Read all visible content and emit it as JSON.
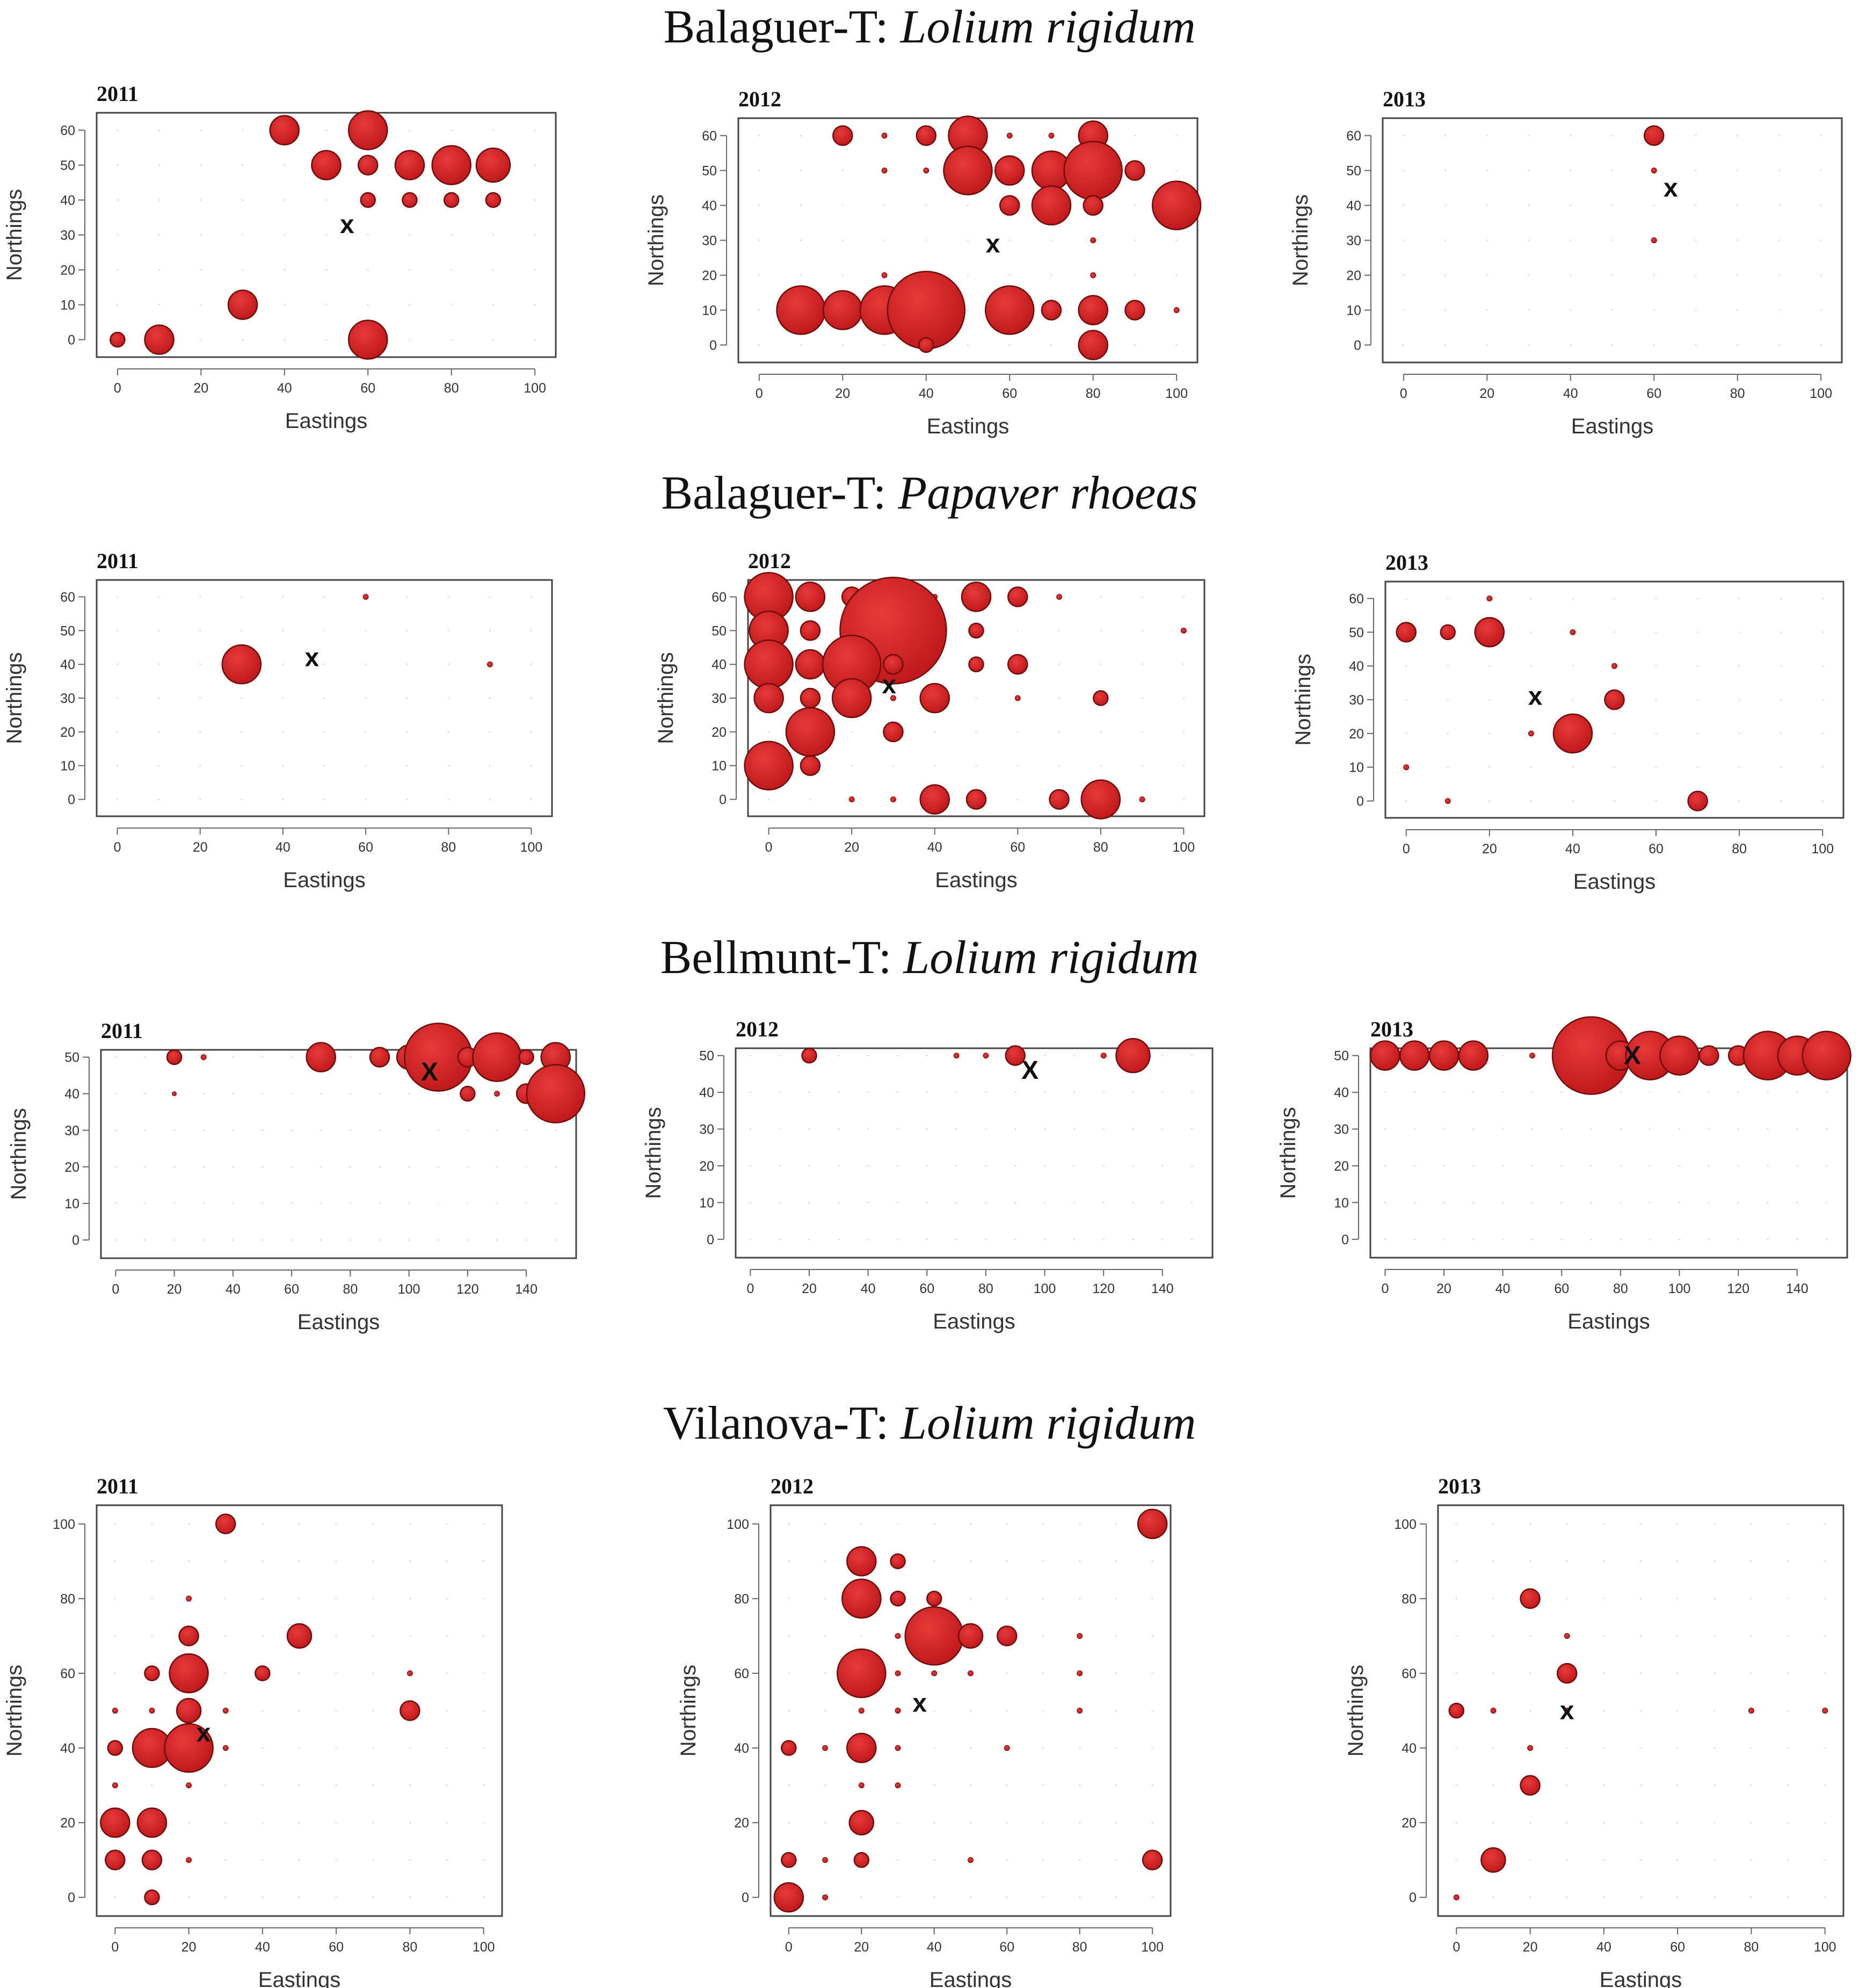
{
  "colors": {
    "bubble": "#c0191c",
    "bubble_edge": "#6e0b0b",
    "frame": "#444444"
  },
  "sections": [
    {
      "site": "Balaguer-T:",
      "species": "Lolium rigidum"
    },
    {
      "site": "Balaguer-T:",
      "species": "Papaver rhoeas"
    },
    {
      "site": "Bellmunt-T:",
      "species": "Lolium rigidum"
    },
    {
      "site": "Vilanova-T:",
      "species": "Lolium rigidum"
    }
  ],
  "chart_data": [
    {
      "type": "scatter",
      "section": 0,
      "title": "2011",
      "xlabel": "Eastings",
      "ylabel": "Northings",
      "xlim": [
        -5,
        105
      ],
      "ylim": [
        -5,
        65
      ],
      "xticks": [
        0,
        20,
        40,
        60,
        80,
        100
      ],
      "yticks": [
        0,
        10,
        20,
        30,
        40,
        50,
        60
      ],
      "marker": {
        "x": 55,
        "y": 33,
        "label": "x"
      },
      "points": [
        [
          40,
          60,
          3
        ],
        [
          60,
          60,
          4
        ],
        [
          50,
          50,
          3
        ],
        [
          60,
          50,
          2
        ],
        [
          70,
          50,
          3
        ],
        [
          80,
          50,
          4
        ],
        [
          90,
          50,
          3.5
        ],
        [
          60,
          40,
          1.5
        ],
        [
          70,
          40,
          1.5
        ],
        [
          80,
          40,
          1.5
        ],
        [
          90,
          40,
          1.5
        ],
        [
          30,
          10,
          3
        ],
        [
          0,
          0,
          1.5
        ],
        [
          10,
          0,
          3
        ],
        [
          60,
          0,
          4
        ]
      ]
    },
    {
      "type": "scatter",
      "section": 0,
      "title": "2012",
      "xlabel": "Eastings",
      "ylabel": "Northings",
      "xlim": [
        -5,
        105
      ],
      "ylim": [
        -5,
        65
      ],
      "xticks": [
        0,
        20,
        40,
        60,
        80,
        100
      ],
      "yticks": [
        0,
        10,
        20,
        30,
        40,
        50,
        60
      ],
      "marker": {
        "x": 56,
        "y": 29,
        "label": "x"
      },
      "points": [
        [
          20,
          60,
          2
        ],
        [
          30,
          60,
          1
        ],
        [
          40,
          60,
          2
        ],
        [
          50,
          60,
          4
        ],
        [
          60,
          60,
          1
        ],
        [
          70,
          60,
          1
        ],
        [
          80,
          60,
          3
        ],
        [
          30,
          50,
          1
        ],
        [
          40,
          50,
          1
        ],
        [
          50,
          50,
          5
        ],
        [
          60,
          50,
          3
        ],
        [
          70,
          50,
          4
        ],
        [
          80,
          50,
          6
        ],
        [
          90,
          50,
          2
        ],
        [
          60,
          40,
          2
        ],
        [
          70,
          40,
          4
        ],
        [
          80,
          40,
          2
        ],
        [
          100,
          40,
          5
        ],
        [
          80,
          30,
          1
        ],
        [
          30,
          20,
          1
        ],
        [
          80,
          20,
          1
        ],
        [
          10,
          10,
          5
        ],
        [
          20,
          10,
          4
        ],
        [
          30,
          10,
          5
        ],
        [
          40,
          10,
          8
        ],
        [
          60,
          10,
          5
        ],
        [
          70,
          10,
          2
        ],
        [
          80,
          10,
          3
        ],
        [
          90,
          10,
          2
        ],
        [
          100,
          10,
          1
        ],
        [
          40,
          0,
          1.5
        ],
        [
          80,
          0,
          3
        ]
      ]
    },
    {
      "type": "scatter",
      "section": 0,
      "title": "2013",
      "xlabel": "Eastings",
      "ylabel": "Northings",
      "xlim": [
        -5,
        105
      ],
      "ylim": [
        -5,
        65
      ],
      "xticks": [
        0,
        20,
        40,
        60,
        80,
        100
      ],
      "yticks": [
        0,
        10,
        20,
        30,
        40,
        50,
        60
      ],
      "marker": {
        "x": 64,
        "y": 45,
        "label": "x"
      },
      "points": [
        [
          60,
          60,
          2
        ],
        [
          60,
          50,
          1
        ],
        [
          60,
          30,
          1
        ]
      ]
    },
    {
      "type": "scatter",
      "section": 1,
      "title": "2011",
      "xlabel": "Eastings",
      "ylabel": "Northings",
      "xlim": [
        -5,
        105
      ],
      "ylim": [
        -5,
        65
      ],
      "xticks": [
        0,
        20,
        40,
        60,
        80,
        100
      ],
      "yticks": [
        0,
        10,
        20,
        30,
        40,
        50,
        60
      ],
      "marker": {
        "x": 47,
        "y": 42,
        "label": "x"
      },
      "points": [
        [
          30,
          40,
          4
        ],
        [
          60,
          60,
          1
        ],
        [
          90,
          40,
          1
        ]
      ]
    },
    {
      "type": "scatter",
      "section": 1,
      "title": "2012",
      "xlabel": "Eastings",
      "ylabel": "Northings",
      "xlim": [
        -5,
        105
      ],
      "ylim": [
        -5,
        65
      ],
      "xticks": [
        0,
        20,
        40,
        60,
        80,
        100
      ],
      "yticks": [
        0,
        10,
        20,
        30,
        40,
        50,
        60
      ],
      "marker": {
        "x": 29,
        "y": 34,
        "label": "x"
      },
      "points": [
        [
          0,
          60,
          5
        ],
        [
          10,
          60,
          3
        ],
        [
          20,
          60,
          2
        ],
        [
          30,
          60,
          2
        ],
        [
          40,
          60,
          1
        ],
        [
          50,
          60,
          3
        ],
        [
          60,
          60,
          2
        ],
        [
          70,
          60,
          1
        ],
        [
          0,
          50,
          4
        ],
        [
          10,
          50,
          2
        ],
        [
          20,
          50,
          2
        ],
        [
          30,
          50,
          11
        ],
        [
          50,
          50,
          1.5
        ],
        [
          100,
          50,
          1
        ],
        [
          0,
          40,
          5
        ],
        [
          10,
          40,
          3
        ],
        [
          20,
          40,
          6
        ],
        [
          30,
          40,
          2
        ],
        [
          50,
          40,
          1.5
        ],
        [
          60,
          40,
          2
        ],
        [
          0,
          30,
          3
        ],
        [
          10,
          30,
          2
        ],
        [
          20,
          30,
          4
        ],
        [
          30,
          30,
          1
        ],
        [
          40,
          30,
          3
        ],
        [
          60,
          30,
          1
        ],
        [
          80,
          30,
          1.5
        ],
        [
          10,
          20,
          5
        ],
        [
          30,
          20,
          2
        ],
        [
          0,
          10,
          5
        ],
        [
          10,
          10,
          2
        ],
        [
          20,
          0,
          1
        ],
        [
          30,
          0,
          1
        ],
        [
          40,
          0,
          3
        ],
        [
          50,
          0,
          2
        ],
        [
          70,
          0,
          2
        ],
        [
          80,
          0,
          4
        ],
        [
          90,
          0,
          1
        ]
      ]
    },
    {
      "type": "scatter",
      "section": 1,
      "title": "2013",
      "xlabel": "Eastings",
      "ylabel": "Northings",
      "xlim": [
        -5,
        105
      ],
      "ylim": [
        -5,
        65
      ],
      "xticks": [
        0,
        20,
        40,
        60,
        80,
        100
      ],
      "yticks": [
        0,
        10,
        20,
        30,
        40,
        50,
        60
      ],
      "marker": {
        "x": 31,
        "y": 31,
        "label": "x"
      },
      "points": [
        [
          0,
          50,
          2
        ],
        [
          10,
          50,
          1.5
        ],
        [
          20,
          50,
          3
        ],
        [
          20,
          60,
          1
        ],
        [
          40,
          50,
          1
        ],
        [
          50,
          40,
          1
        ],
        [
          50,
          30,
          2
        ],
        [
          30,
          20,
          1
        ],
        [
          40,
          20,
          4
        ],
        [
          0,
          10,
          1
        ],
        [
          10,
          0,
          1
        ],
        [
          70,
          0,
          2
        ]
      ]
    },
    {
      "type": "scatter",
      "section": 2,
      "title": "2011",
      "xlabel": "Eastings",
      "ylabel": "Northings",
      "xlim": [
        -5,
        157
      ],
      "ylim": [
        -5,
        52
      ],
      "xticks": [
        0,
        20,
        40,
        60,
        80,
        100,
        120,
        140
      ],
      "yticks": [
        0,
        10,
        20,
        30,
        40,
        50
      ],
      "marker": {
        "x": 107,
        "y": 46,
        "label": "X"
      },
      "points": [
        [
          20,
          50,
          1.5
        ],
        [
          30,
          50,
          1
        ],
        [
          70,
          50,
          3
        ],
        [
          90,
          50,
          2
        ],
        [
          100,
          50,
          2.5
        ],
        [
          110,
          50,
          7
        ],
        [
          120,
          50,
          2
        ],
        [
          130,
          50,
          5
        ],
        [
          140,
          50,
          1.5
        ],
        [
          150,
          50,
          3
        ],
        [
          120,
          40,
          1.5
        ],
        [
          130,
          40,
          1
        ],
        [
          140,
          40,
          2
        ],
        [
          150,
          40,
          6
        ],
        [
          20,
          40,
          0.8
        ]
      ]
    },
    {
      "type": "scatter",
      "section": 2,
      "title": "2012",
      "xlabel": "Eastings",
      "ylabel": "Northings",
      "xlim": [
        -5,
        157
      ],
      "ylim": [
        -5,
        52
      ],
      "xticks": [
        0,
        20,
        40,
        60,
        80,
        100,
        120,
        140
      ],
      "yticks": [
        0,
        10,
        20,
        30,
        40,
        50
      ],
      "marker": {
        "x": 95,
        "y": 46,
        "label": "X"
      },
      "points": [
        [
          20,
          50,
          1.5
        ],
        [
          70,
          50,
          1
        ],
        [
          80,
          50,
          1
        ],
        [
          90,
          50,
          2
        ],
        [
          120,
          50,
          1
        ],
        [
          130,
          50,
          3.5
        ]
      ]
    },
    {
      "type": "scatter",
      "section": 2,
      "title": "2013",
      "xlabel": "Eastings",
      "ylabel": "Northings",
      "xlim": [
        -5,
        157
      ],
      "ylim": [
        -5,
        52
      ],
      "xticks": [
        0,
        20,
        40,
        60,
        80,
        100,
        120,
        140
      ],
      "yticks": [
        0,
        10,
        20,
        30,
        40,
        50
      ],
      "marker": {
        "x": 84,
        "y": 50,
        "label": "X"
      },
      "points": [
        [
          0,
          50,
          3
        ],
        [
          10,
          50,
          3
        ],
        [
          20,
          50,
          3
        ],
        [
          30,
          50,
          3
        ],
        [
          50,
          50,
          1
        ],
        [
          60,
          50,
          1
        ],
        [
          70,
          50,
          8
        ],
        [
          80,
          50,
          3
        ],
        [
          90,
          50,
          5
        ],
        [
          100,
          50,
          4
        ],
        [
          110,
          50,
          2
        ],
        [
          120,
          50,
          2
        ],
        [
          130,
          50,
          5
        ],
        [
          140,
          50,
          4
        ],
        [
          150,
          50,
          5
        ]
      ]
    },
    {
      "type": "scatter",
      "section": 3,
      "title": "2011",
      "xlabel": "Eastings",
      "ylabel": "Northings",
      "xlim": [
        -5,
        105
      ],
      "ylim": [
        -5,
        105
      ],
      "xticks": [
        0,
        20,
        40,
        60,
        80,
        100
      ],
      "yticks": [
        0,
        20,
        40,
        60,
        80,
        100
      ],
      "marker": {
        "x": 24,
        "y": 44,
        "label": "x"
      },
      "points": [
        [
          30,
          100,
          2
        ],
        [
          20,
          80,
          1
        ],
        [
          20,
          70,
          2
        ],
        [
          50,
          70,
          2.5
        ],
        [
          10,
          60,
          1.5
        ],
        [
          20,
          60,
          4
        ],
        [
          40,
          60,
          1.5
        ],
        [
          80,
          60,
          1
        ],
        [
          0,
          50,
          1
        ],
        [
          10,
          50,
          1
        ],
        [
          20,
          50,
          2.5
        ],
        [
          30,
          50,
          1
        ],
        [
          80,
          50,
          2
        ],
        [
          0,
          40,
          1.5
        ],
        [
          10,
          40,
          4
        ],
        [
          20,
          40,
          5
        ],
        [
          30,
          40,
          1
        ],
        [
          0,
          30,
          1
        ],
        [
          20,
          30,
          1
        ],
        [
          0,
          20,
          3
        ],
        [
          10,
          20,
          3
        ],
        [
          0,
          10,
          2
        ],
        [
          10,
          10,
          2
        ],
        [
          20,
          10,
          1
        ],
        [
          10,
          0,
          1.5
        ]
      ]
    },
    {
      "type": "scatter",
      "section": 3,
      "title": "2012",
      "xlabel": "Eastings",
      "ylabel": "Northings",
      "xlim": [
        -5,
        105
      ],
      "ylim": [
        -5,
        105
      ],
      "xticks": [
        0,
        20,
        40,
        60,
        80,
        100
      ],
      "yticks": [
        0,
        20,
        40,
        60,
        80,
        100
      ],
      "marker": {
        "x": 36,
        "y": 52,
        "label": "x"
      },
      "points": [
        [
          100,
          100,
          3
        ],
        [
          20,
          90,
          3
        ],
        [
          30,
          90,
          1.5
        ],
        [
          20,
          80,
          4
        ],
        [
          30,
          80,
          1.5
        ],
        [
          40,
          80,
          1.5
        ],
        [
          40,
          70,
          6
        ],
        [
          50,
          70,
          2.5
        ],
        [
          60,
          70,
          2
        ],
        [
          80,
          70,
          1
        ],
        [
          30,
          70,
          1
        ],
        [
          20,
          60,
          5
        ],
        [
          30,
          60,
          1
        ],
        [
          40,
          60,
          1
        ],
        [
          50,
          60,
          1
        ],
        [
          80,
          60,
          1
        ],
        [
          20,
          50,
          1
        ],
        [
          30,
          50,
          1
        ],
        [
          80,
          50,
          1
        ],
        [
          0,
          40,
          1.5
        ],
        [
          10,
          40,
          1
        ],
        [
          20,
          40,
          3
        ],
        [
          30,
          40,
          1
        ],
        [
          60,
          40,
          1
        ],
        [
          20,
          30,
          1
        ],
        [
          30,
          30,
          1
        ],
        [
          20,
          20,
          2.5
        ],
        [
          0,
          10,
          1.5
        ],
        [
          10,
          10,
          1
        ],
        [
          20,
          10,
          1.5
        ],
        [
          50,
          10,
          1
        ],
        [
          100,
          10,
          2
        ],
        [
          0,
          0,
          3
        ],
        [
          10,
          0,
          1
        ]
      ]
    },
    {
      "type": "scatter",
      "section": 3,
      "title": "2013",
      "xlabel": "Eastings",
      "ylabel": "Northings",
      "xlim": [
        -5,
        105
      ],
      "ylim": [
        -5,
        105
      ],
      "xticks": [
        0,
        20,
        40,
        60,
        80,
        100
      ],
      "yticks": [
        0,
        20,
        40,
        60,
        80,
        100
      ],
      "marker": {
        "x": 30,
        "y": 50,
        "label": "x"
      },
      "points": [
        [
          20,
          80,
          2
        ],
        [
          30,
          70,
          1
        ],
        [
          30,
          60,
          2
        ],
        [
          0,
          50,
          1.5
        ],
        [
          10,
          50,
          1
        ],
        [
          30,
          50,
          1
        ],
        [
          80,
          50,
          1
        ],
        [
          100,
          50,
          1
        ],
        [
          20,
          40,
          1
        ],
        [
          20,
          30,
          2
        ],
        [
          10,
          10,
          2.5
        ],
        [
          0,
          0,
          1
        ]
      ]
    }
  ]
}
